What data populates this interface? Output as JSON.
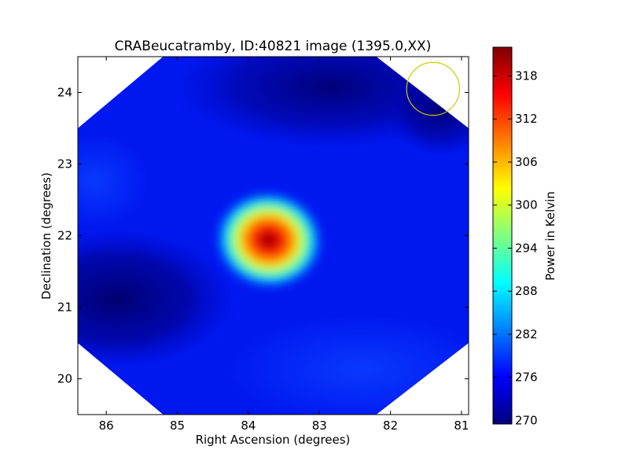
{
  "chart_data": {
    "type": "heatmap",
    "title": "CRABeucatramby, ID:40821 image (1395.0,XX)",
    "xlabel": "Right Ascension (degrees)",
    "ylabel": "Declination (degrees)",
    "xlim": [
      86.4,
      80.9
    ],
    "ylim": [
      19.5,
      24.5
    ],
    "x_axis_inverted": true,
    "x_ticks": [
      86,
      85,
      84,
      83,
      82,
      81
    ],
    "y_ticks": [
      20,
      21,
      22,
      23,
      24
    ],
    "colorbar": {
      "label": "Power in Kelvin",
      "range": [
        269.5,
        322
      ],
      "ticks": [
        270,
        276,
        282,
        288,
        294,
        300,
        306,
        312,
        318
      ],
      "colormap": "jet"
    },
    "image": {
      "background_level": 276,
      "peak": {
        "ra": 83.63,
        "dec": 22.0,
        "value": 322
      },
      "low_regions": [
        {
          "ra": 86.0,
          "dec": 21.2,
          "value": 270
        },
        {
          "ra": 82.7,
          "dec": 24.2,
          "value": 271
        },
        {
          "ra": 81.4,
          "dec": 24.2,
          "value": 272
        }
      ],
      "footprint": "octagon",
      "footprint_corners_dec": [
        {
          "ra": 86.4,
          "dec": 23.5
        },
        {
          "ra": 85.2,
          "dec": 24.5
        },
        {
          "ra": 82.2,
          "dec": 24.5
        },
        {
          "ra": 80.9,
          "dec": 23.5
        },
        {
          "ra": 80.9,
          "dec": 20.5
        },
        {
          "ra": 82.2,
          "dec": 19.5
        },
        {
          "ra": 85.2,
          "dec": 19.5
        },
        {
          "ra": 86.4,
          "dec": 20.5
        }
      ]
    },
    "beam_circle": {
      "ra": 81.4,
      "dec": 24.05,
      "radius_deg": 0.37,
      "color": "#cccc00"
    }
  },
  "colors": {
    "jet_stops": [
      "#00007f",
      "#0000ff",
      "#007fff",
      "#00ffff",
      "#7fff7f",
      "#ffff00",
      "#ff7f00",
      "#ff0000",
      "#7f0000"
    ]
  }
}
